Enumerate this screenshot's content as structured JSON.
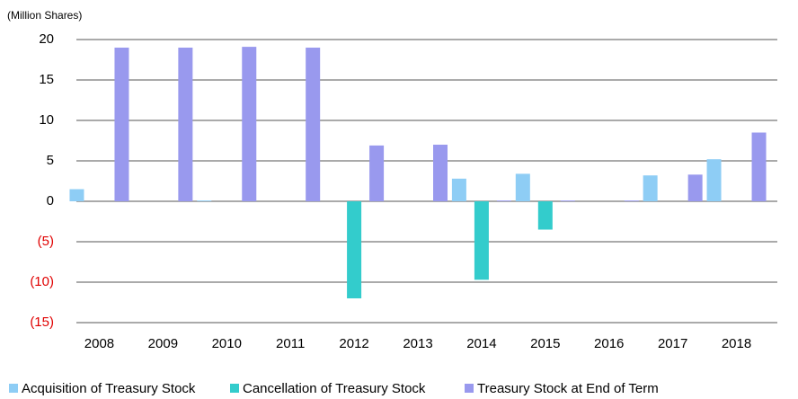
{
  "chart_data": {
    "type": "bar",
    "y_label": "(Million Shares)",
    "categories": [
      "2008",
      "2009",
      "2010",
      "2011",
      "2012",
      "2013",
      "2014",
      "2015",
      "2016",
      "2017",
      "2018"
    ],
    "series": [
      {
        "name": "Acquisition of Treasury Stock",
        "color": "#8ecdf5",
        "values": [
          1.5,
          0,
          0.1,
          0,
          0,
          0,
          2.8,
          3.4,
          0,
          3.2,
          5.2
        ]
      },
      {
        "name": "Cancellation of Treasury Stock",
        "color": "#33cccc",
        "values": [
          0,
          0,
          0,
          0,
          -12,
          0,
          -9.7,
          -3.5,
          0,
          0,
          0
        ]
      },
      {
        "name": "Treasury Stock at End of Term",
        "color": "#9999ee",
        "values": [
          19,
          19,
          19.1,
          19,
          6.9,
          7,
          0.1,
          0.1,
          0.1,
          3.3,
          8.5
        ]
      }
    ],
    "ylim": [
      -15,
      20
    ],
    "yticks": [
      {
        "value": -15,
        "label": "(15)"
      },
      {
        "value": -10,
        "label": "(10)"
      },
      {
        "value": -5,
        "label": "(5)"
      },
      0,
      5,
      10,
      15,
      20
    ],
    "negative_tick_color": "#e00000",
    "grid": true,
    "legend": "bottom"
  }
}
